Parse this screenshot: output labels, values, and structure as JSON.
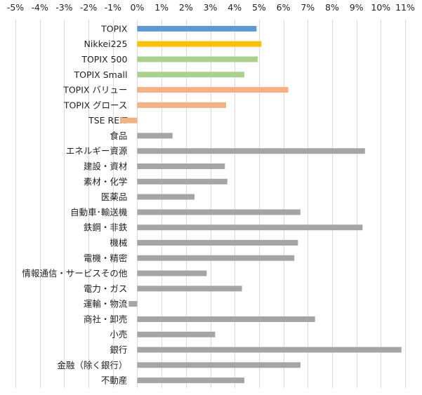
{
  "chart_data": {
    "type": "bar",
    "orientation": "horizontal",
    "categories": [
      "TOPIX",
      "Nikkei225",
      "TOPIX 500",
      "TOPIX Small",
      "TOPIX バリュー",
      "TOPIX グロース",
      "TSE REIT",
      "食品",
      "エネルギー資源",
      "建設・資材",
      "素材・化学",
      "医薬品",
      "自動車･輸送機",
      "鉄鋼・非鉄",
      "機械",
      "電機・精密",
      "情報通信・サービスその他",
      "電力・ガス",
      "運輸・物流",
      "商社・卸売",
      "小売",
      "銀行",
      "金融（除く銀行）",
      "不動産"
    ],
    "values": [
      4.9,
      5.1,
      4.95,
      4.4,
      6.2,
      3.65,
      -0.7,
      1.45,
      9.35,
      3.6,
      3.7,
      2.35,
      6.7,
      9.25,
      6.6,
      6.45,
      2.85,
      4.3,
      -0.35,
      7.3,
      3.2,
      10.85,
      6.7,
      4.4
    ],
    "bar_colors": [
      "#5b9bd5",
      "#ffc000",
      "#a9d18e",
      "#a9d18e",
      "#f4b183",
      "#f4b183",
      "#f4b183",
      "#a5a5a5",
      "#a5a5a5",
      "#a5a5a5",
      "#a5a5a5",
      "#a5a5a5",
      "#a5a5a5",
      "#a5a5a5",
      "#a5a5a5",
      "#a5a5a5",
      "#a5a5a5",
      "#a5a5a5",
      "#a5a5a5",
      "#a5a5a5",
      "#a5a5a5",
      "#a5a5a5",
      "#a5a5a5",
      "#a5a5a5"
    ],
    "xlim": [
      -5,
      11
    ],
    "x_ticks": [
      -5,
      -4,
      -3,
      -2,
      -1,
      0,
      1,
      2,
      3,
      4,
      5,
      6,
      7,
      8,
      9,
      10,
      11
    ],
    "x_tick_labels": [
      "-5%",
      "-4%",
      "-3%",
      "-2%",
      "-1%",
      "0%",
      "1%",
      "2%",
      "3%",
      "4%",
      "5%",
      "6%",
      "7%",
      "8%",
      "9%",
      "10%",
      "11%"
    ],
    "x_axis_position": "top",
    "grid": "vertical",
    "grid_color": "#d9d9d9",
    "legend": "none"
  }
}
